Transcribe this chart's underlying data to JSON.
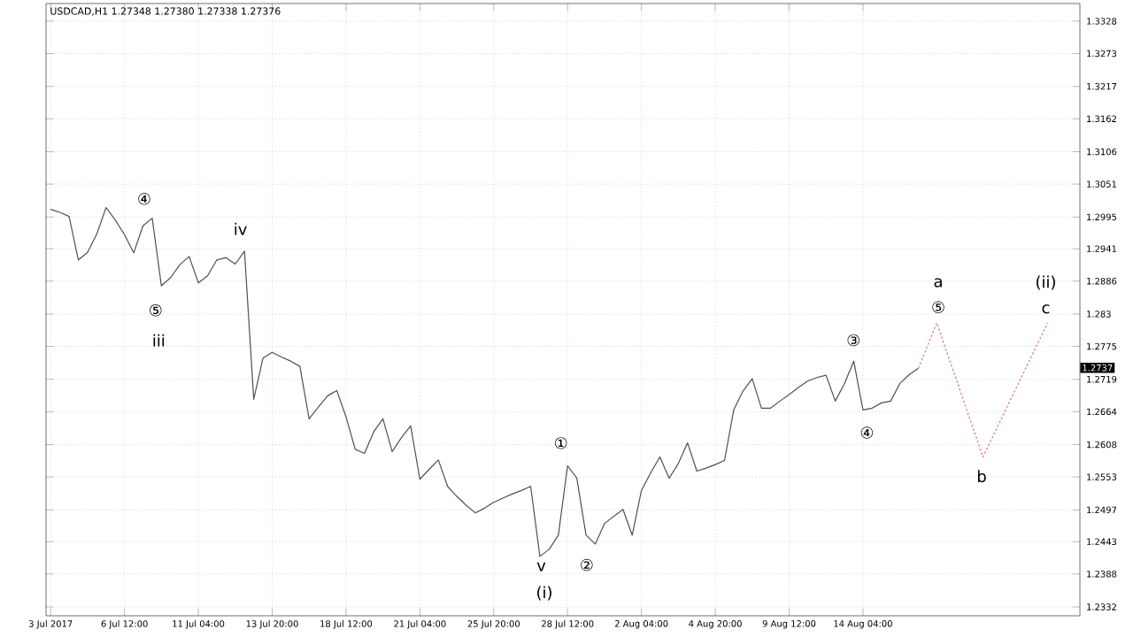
{
  "chart_data": {
    "type": "line",
    "title": "USDCAD,H1  1.27348 1.27380 1.27338 1.27376",
    "grid": true,
    "marker": "none",
    "categories": [
      "3 Jul 2017",
      null,
      null,
      null,
      null,
      null,
      null,
      null,
      "6 Jul 12:00",
      null,
      null,
      null,
      null,
      null,
      null,
      null,
      "11 Jul 04:00",
      null,
      null,
      null,
      null,
      null,
      null,
      null,
      "13 Jul 20:00",
      null,
      null,
      null,
      null,
      null,
      null,
      null,
      "18 Jul 12:00",
      null,
      null,
      null,
      null,
      null,
      null,
      null,
      "21 Jul 04:00",
      null,
      null,
      null,
      null,
      null,
      null,
      null,
      "25 Jul 20:00",
      null,
      null,
      null,
      null,
      null,
      null,
      null,
      "28 Jul 12:00",
      null,
      null,
      null,
      null,
      null,
      null,
      null,
      "2 Aug 04:00",
      null,
      null,
      null,
      null,
      null,
      null,
      null,
      "4 Aug 20:00",
      null,
      null,
      null,
      null,
      null,
      null,
      null,
      "9 Aug 12:00",
      null,
      null,
      null,
      null,
      null,
      null,
      null,
      "14 Aug 04:00",
      null,
      null,
      null,
      null,
      null,
      null,
      null,
      null,
      null,
      null,
      null,
      null,
      null,
      null,
      null,
      null,
      null,
      null,
      null,
      null,
      null,
      null,
      null
    ],
    "ylim": [
      1.2317,
      1.3358
    ],
    "yticks": [
      1.2332,
      1.2388,
      1.2443,
      1.2497,
      1.2553,
      1.2608,
      1.2664,
      1.2719,
      1.2775,
      1.283,
      1.2886,
      1.2941,
      1.2995,
      1.3051,
      1.3106,
      1.3162,
      1.3217,
      1.3273,
      1.3328
    ],
    "series": [
      {
        "color": "#505050",
        "line_style": "solid",
        "values": [
          1.3008,
          1.3003,
          1.2996,
          1.2922,
          1.2935,
          1.2966,
          1.3011,
          1.299,
          1.2965,
          1.2934,
          1.298,
          1.2993,
          1.2878,
          1.2892,
          1.2914,
          1.2928,
          1.2883,
          1.2895,
          1.2922,
          1.2926,
          1.2915,
          1.2937,
          1.2685,
          1.2755,
          1.2765,
          1.2757,
          1.275,
          1.2741,
          1.2652,
          1.2672,
          1.2691,
          1.27,
          1.2655,
          1.26,
          1.2593,
          1.263,
          1.2652,
          1.2596,
          1.262,
          1.264,
          1.2549,
          1.2566,
          1.2582,
          1.2537,
          1.252,
          1.2505,
          1.2492,
          1.25,
          1.251,
          1.2517,
          1.2524,
          1.253,
          1.2537,
          1.2418,
          1.243,
          1.2454,
          1.2572,
          1.2551,
          1.2454,
          1.2439,
          1.2474,
          1.2486,
          1.2498,
          1.2454,
          1.253,
          1.256,
          1.2587,
          1.2551,
          1.2576,
          1.2611,
          1.2563,
          1.2568,
          1.2574,
          1.2581,
          1.2667,
          1.2699,
          1.272,
          1.267,
          1.267,
          1.2682,
          1.2693,
          1.2705,
          1.2716,
          1.2722,
          1.2726,
          1.2682,
          1.2712,
          1.275,
          1.2667,
          1.267,
          1.2679,
          1.2682,
          1.2712,
          1.2727,
          1.2738,
          null,
          null,
          null,
          null,
          null,
          null,
          null,
          null,
          null,
          null,
          null,
          null,
          null,
          null,
          null,
          null,
          null
        ]
      },
      {
        "color": "#e07070",
        "line_style": "dotted",
        "values": [
          null,
          null,
          null,
          null,
          null,
          null,
          null,
          null,
          null,
          null,
          null,
          null,
          null,
          null,
          null,
          null,
          null,
          null,
          null,
          null,
          null,
          null,
          null,
          null,
          null,
          null,
          null,
          null,
          null,
          null,
          null,
          null,
          null,
          null,
          null,
          null,
          null,
          null,
          null,
          null,
          null,
          null,
          null,
          null,
          null,
          null,
          null,
          null,
          null,
          null,
          null,
          null,
          null,
          null,
          null,
          null,
          null,
          null,
          null,
          null,
          null,
          null,
          null,
          null,
          null,
          null,
          null,
          null,
          null,
          null,
          null,
          null,
          null,
          null,
          null,
          null,
          null,
          null,
          null,
          null,
          null,
          null,
          null,
          null,
          null,
          null,
          null,
          null,
          null,
          null,
          null,
          null,
          null,
          null,
          1.2738,
          1.2776,
          1.2815,
          1.2769,
          1.2724,
          1.2678,
          1.2633,
          1.2587,
          1.262,
          1.2652,
          1.2685,
          1.2717,
          1.275,
          1.2782,
          1.2815,
          null,
          null,
          null
        ]
      }
    ],
    "annotations": [
      "④",
      "⑤",
      "iii",
      "iv",
      "①",
      "v",
      "(i)",
      "②",
      "③",
      "④",
      "a",
      "⑤",
      "b",
      "(ii)",
      "c",
      "1.2737"
    ]
  }
}
